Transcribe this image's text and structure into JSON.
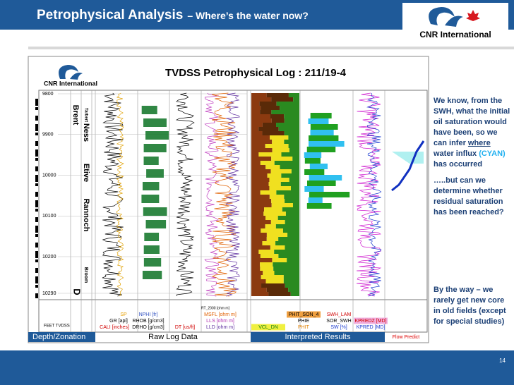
{
  "header": {
    "title": "Petrophysical Analysis",
    "subtitle": "– Where’s the water now?",
    "logo": "CNR International"
  },
  "log": {
    "logo": "CNR International",
    "title": "TVDSS Petrophysical Log : 211/19-4",
    "depths": [
      9800,
      9900,
      10000,
      10100,
      10200,
      10290
    ],
    "zones": [
      "Brent",
      "Tarbert",
      "Ness",
      "Etive",
      "Rannoch",
      "Broom",
      "D"
    ],
    "depth_axis": "FEET TVDSS",
    "track_headers": [
      "SP",
      "NPHI [fr]",
      "GR [api]",
      "RHOB [g/cm3]",
      "CALI [inches]",
      "DRHO [g/cm3]",
      "DT [us/ft]",
      "RT_2000 [ohm m]",
      "MSFL [ohm m]",
      "LLS [ohm m]",
      "LLD [ohm m]",
      "PHIT_SON_4",
      "SWH_LAM",
      "PHIE",
      "SOR_SWH",
      "VCL_DN",
      "PHIT",
      "SW [%]",
      "KPREDZ [MD]",
      "KPRED [MD]"
    ],
    "sections": [
      "Depth/Zonation",
      "Raw Log Data",
      "Interpreted Results",
      "Flow Predict"
    ]
  },
  "notes": [
    [
      "We know, from the SWH, what the initial oil saturation would have been, so we can infer ",
      "where",
      " water influx ",
      "(CYAN)",
      " has occurred"
    ],
    [
      "…..but can we determine whether residual saturation has been reached?"
    ],
    [
      "By the way – we rarely get new core in old fields (except for special studies)"
    ]
  ],
  "page_number": 14
}
